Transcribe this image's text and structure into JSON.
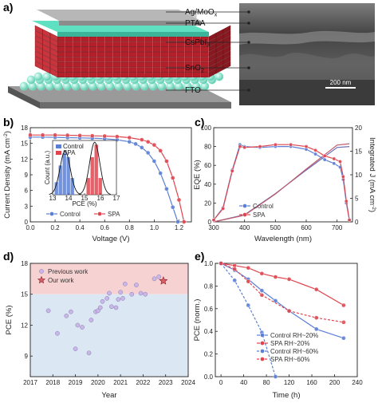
{
  "panels": {
    "a": {
      "letter": "a)",
      "layers": [
        "Ag/MoO",
        "PTAA",
        "CsPbI",
        "SnO",
        "FTO"
      ],
      "layer_subs": [
        "x",
        "",
        "3",
        "2",
        ""
      ],
      "scale_bar": "200 nm"
    },
    "b": {
      "letter": "b)"
    },
    "c": {
      "letter": "c)"
    },
    "d": {
      "letter": "d)"
    },
    "e": {
      "letter": "e)"
    }
  },
  "colors": {
    "control": "#5b7fd6",
    "spa": "#e0454f",
    "teal": "#4fd1b8",
    "crystal": "#b3202a"
  },
  "chart_data": [
    {
      "id": "b",
      "type": "line",
      "xlabel": "Voltage (V)",
      "ylabel": "Current Density (mA cm",
      "ylabel_sup": "-2",
      "ylabel_tail": ")",
      "xlim": [
        0.0,
        1.3
      ],
      "ylim": [
        0,
        18
      ],
      "xticks": [
        "0.0",
        "0.2",
        "0.4",
        "0.6",
        "0.8",
        "1.0",
        "1.2"
      ],
      "yticks": [
        "0",
        "3",
        "6",
        "9",
        "12",
        "15",
        "18"
      ],
      "series": [
        {
          "name": "Control",
          "x": [
            0,
            0.1,
            0.2,
            0.3,
            0.4,
            0.5,
            0.6,
            0.7,
            0.8,
            0.85,
            0.9,
            0.95,
            1.0,
            1.05,
            1.1,
            1.15,
            1.19
          ],
          "y": [
            16.2,
            16.2,
            16.15,
            16.1,
            16.05,
            16.0,
            15.9,
            15.7,
            15.3,
            14.9,
            14.2,
            13.2,
            11.6,
            9.3,
            6.3,
            2.8,
            0
          ]
        },
        {
          "name": "SPA",
          "x": [
            0,
            0.1,
            0.2,
            0.3,
            0.4,
            0.5,
            0.6,
            0.7,
            0.8,
            0.9,
            0.95,
            1.0,
            1.05,
            1.1,
            1.15,
            1.2,
            1.24
          ],
          "y": [
            16.6,
            16.6,
            16.6,
            16.55,
            16.5,
            16.45,
            16.4,
            16.3,
            16.1,
            15.7,
            15.3,
            14.7,
            13.6,
            11.6,
            8.4,
            4.2,
            0
          ]
        }
      ],
      "inset": {
        "type": "histogram",
        "xlabel": "PCE (%)",
        "ylabel": "Count (a.u.)",
        "xlim": [
          13,
          17
        ],
        "xticks": [
          "13",
          "14",
          "15",
          "16",
          "17"
        ],
        "series": [
          {
            "name": "Control",
            "bins": [
              13.25,
              13.5,
              13.75,
              14.0,
              14.25
            ],
            "counts": [
              3,
              7,
              10,
              9,
              4
            ]
          },
          {
            "name": "SPA",
            "bins": [
              15.25,
              15.5,
              15.75,
              16.0
            ],
            "counts": [
              4,
              9,
              12,
              4
            ]
          }
        ],
        "ymax": 13
      }
    },
    {
      "id": "c",
      "type": "line",
      "xlabel": "Wavelength (nm)",
      "ylabel": "EQE (%)",
      "y2label": "Integrated J (mA cm",
      "y2label_sup": "-2",
      "y2label_tail": ")",
      "xlim": [
        300,
        750
      ],
      "ylim": [
        0,
        100
      ],
      "y2lim": [
        0,
        20
      ],
      "xticks": [
        "300",
        "400",
        "500",
        "600",
        "700"
      ],
      "yticks": [
        "0",
        "20",
        "40",
        "60",
        "80",
        "100"
      ],
      "y2ticks": [
        "0",
        "5",
        "10",
        "15",
        "20"
      ],
      "series": [
        {
          "name": "Control",
          "x": [
            300,
            330,
            360,
            385,
            400,
            450,
            500,
            550,
            600,
            630,
            660,
            690,
            710,
            720,
            730,
            740
          ],
          "y": [
            2,
            15,
            55,
            82,
            80,
            79,
            80,
            80,
            77,
            72,
            66,
            62,
            58,
            45,
            20,
            2
          ]
        },
        {
          "name": "SPA",
          "x": [
            300,
            330,
            360,
            385,
            400,
            450,
            500,
            550,
            600,
            630,
            660,
            690,
            710,
            720,
            730,
            740
          ],
          "y": [
            2,
            14,
            54,
            80,
            79,
            80,
            82,
            82,
            80,
            76,
            70,
            67,
            64,
            48,
            22,
            2
          ]
        }
      ],
      "integrated": [
        {
          "name": "Control",
          "x": [
            300,
            400,
            500,
            600,
            700,
            740
          ],
          "y": [
            0,
            1.5,
            6.0,
            11.0,
            15.8,
            16.0
          ]
        },
        {
          "name": "SPA",
          "x": [
            300,
            400,
            500,
            600,
            700,
            740
          ],
          "y": [
            0,
            1.4,
            5.9,
            11.2,
            16.3,
            16.6
          ]
        }
      ]
    },
    {
      "id": "d",
      "type": "scatter",
      "xlabel": "Year",
      "ylabel": "PCE (%)",
      "xlim": [
        2017,
        2024
      ],
      "ylim": [
        7,
        18
      ],
      "xticks": [
        "2017",
        "2018",
        "2019",
        "2020",
        "2021",
        "2022",
        "2023",
        "2024"
      ],
      "yticks": [
        "9",
        "12",
        "15",
        "18"
      ],
      "series": [
        {
          "name": "Previous work",
          "x": [
            2017.8,
            2018.2,
            2018.6,
            2018.8,
            2019.0,
            2019.1,
            2019.3,
            2019.6,
            2019.7,
            2019.9,
            2020.0,
            2020.1,
            2020.2,
            2020.4,
            2020.5,
            2020.6,
            2020.8,
            2020.9,
            2021.0,
            2021.1,
            2021.2,
            2021.5,
            2021.7,
            2021.9,
            2022.1,
            2022.5,
            2022.7
          ],
          "y": [
            13.4,
            11.2,
            12.9,
            13.3,
            9.7,
            12.0,
            11.8,
            9.3,
            12.5,
            13.3,
            13.4,
            13.7,
            14.3,
            14.6,
            15.1,
            13.8,
            13.7,
            14.5,
            15.2,
            14.6,
            16.0,
            15.0,
            15.9,
            15.1,
            15.0,
            16.5,
            16.7
          ]
        },
        {
          "name": "Our work",
          "x": [
            2022.9
          ],
          "y": [
            16.3
          ]
        }
      ],
      "bands": [
        {
          "from": 15,
          "to": 18,
          "color": "#f6d2d2"
        },
        {
          "from": 7,
          "to": 15,
          "color": "#dbe8f3"
        }
      ]
    },
    {
      "id": "e",
      "type": "line",
      "xlabel": "Time (h)",
      "ylabel": "PCE (norm.)",
      "xlim": [
        -10,
        240
      ],
      "ylim": [
        0,
        1.0
      ],
      "xticks": [
        "0",
        "40",
        "80",
        "120",
        "160",
        "200",
        "240"
      ],
      "yticks": [
        "0.0",
        "0.2",
        "0.4",
        "0.6",
        "0.8",
        "1.0"
      ],
      "series": [
        {
          "name": "Control RH~20%",
          "x": [
            0,
            24,
            48,
            72,
            96,
            120,
            168,
            216
          ],
          "y": [
            1.0,
            0.94,
            0.86,
            0.76,
            0.67,
            0.58,
            0.42,
            0.34
          ],
          "dashed": false,
          "color": "#5b7fd6"
        },
        {
          "name": "SPA RH~20%",
          "x": [
            0,
            24,
            48,
            72,
            96,
            120,
            168,
            216
          ],
          "y": [
            1.0,
            0.98,
            0.96,
            0.91,
            0.88,
            0.86,
            0.77,
            0.63
          ],
          "dashed": false,
          "color": "#e0454f"
        },
        {
          "name": "Control RH~60%",
          "x": [
            0,
            24,
            48,
            72,
            96
          ],
          "y": [
            1.0,
            0.85,
            0.63,
            0.39,
            0.0
          ],
          "dashed": true,
          "color": "#5b7fd6"
        },
        {
          "name": "SPA RH~60%",
          "x": [
            0,
            24,
            48,
            72,
            120,
            168,
            216
          ],
          "y": [
            1.0,
            0.95,
            0.84,
            0.72,
            0.58,
            0.52,
            0.48
          ],
          "dashed": true,
          "color": "#e0454f"
        }
      ]
    }
  ]
}
